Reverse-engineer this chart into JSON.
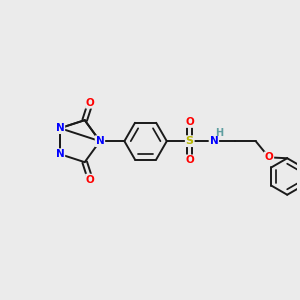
{
  "bg_color": "#ebebeb",
  "bond_color": "#1a1a1a",
  "bond_width": 1.4,
  "N_color": "#0000ff",
  "O_color": "#ff0000",
  "S_color": "#b8b800",
  "H_color": "#5f9ea0",
  "figsize": [
    3.0,
    3.0
  ],
  "dpi": 100,
  "xlim": [
    0,
    10
  ],
  "ylim": [
    0,
    10
  ]
}
